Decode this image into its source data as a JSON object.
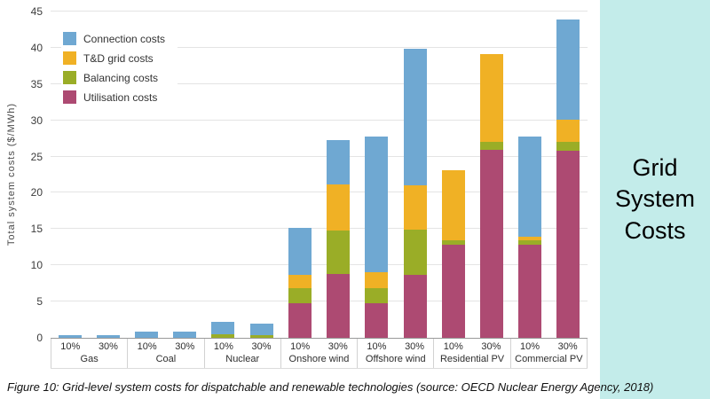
{
  "sidebar": {
    "title": "Grid System Costs",
    "background": "#C3ECEA"
  },
  "caption": "Figure 10: Grid-level system costs for dispatchable and renewable technologies (source: OECD Nuclear Energy Agency, 2018)",
  "chart_data": {
    "type": "bar",
    "stacked": true,
    "title": "",
    "xlabel": "",
    "ylabel": "Total system costs ($/MWh)",
    "ylim": [
      0,
      45
    ],
    "ytick_step": 5,
    "grid": "horizontal",
    "legend_position": "top-left",
    "group_labels": [
      "Gas",
      "Coal",
      "Nuclear",
      "Onshore wind",
      "Offshore wind",
      "Residential PV",
      "Commercial PV"
    ],
    "categories": [
      "10%",
      "30%",
      "10%",
      "30%",
      "10%",
      "30%",
      "10%",
      "30%",
      "10%",
      "30%",
      "10%",
      "30%",
      "10%",
      "30%"
    ],
    "stack_order_bottom_to_top": [
      "Utilisation costs",
      "Balancing costs",
      "T&D grid costs",
      "Connection costs"
    ],
    "series": [
      {
        "name": "Connection costs",
        "color": "#6FA8D2",
        "values": [
          0.4,
          0.4,
          0.9,
          0.9,
          1.7,
          1.6,
          6.5,
          6.2,
          18.7,
          18.9,
          0,
          0,
          13.9,
          13.8
        ]
      },
      {
        "name": "T&D grid costs",
        "color": "#F0B125",
        "values": [
          0,
          0,
          0,
          0,
          0,
          0,
          1.8,
          6.3,
          2.2,
          6.1,
          9.6,
          12.1,
          0.5,
          3.1
        ]
      },
      {
        "name": "Balancing costs",
        "color": "#9AAD27",
        "values": [
          0,
          0,
          0,
          0,
          0.5,
          0.4,
          2.1,
          6.0,
          2.1,
          6.2,
          0.6,
          1.1,
          0.5,
          1.2
        ]
      },
      {
        "name": "Utilisation costs",
        "color": "#AD4A72",
        "values": [
          0,
          0,
          0,
          0,
          0,
          0,
          4.8,
          8.8,
          4.8,
          8.7,
          12.9,
          25.9,
          12.9,
          25.8
        ]
      }
    ],
    "totals": [
      0.4,
      0.4,
      0.9,
      0.9,
      2.2,
      2.0,
      15.2,
      27.3,
      27.8,
      39.9,
      23.1,
      39.1,
      27.8,
      43.9
    ]
  }
}
